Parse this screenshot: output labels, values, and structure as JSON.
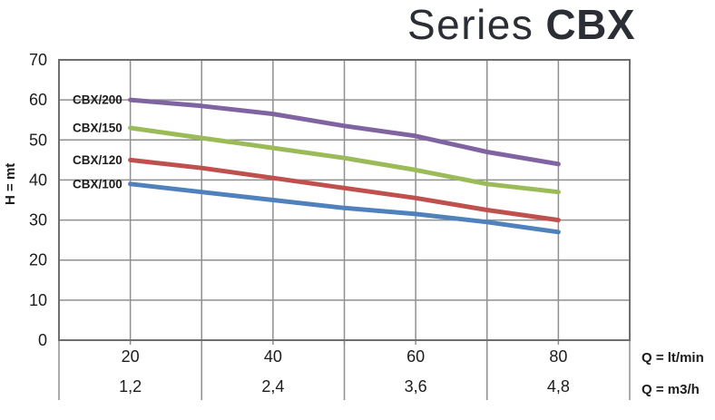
{
  "title": {
    "series": "Series",
    "model": "CBX"
  },
  "colors": {
    "grid": "#8f8f8f",
    "border": "#6e6e6e",
    "text": "#1c1c1c",
    "title": "#2b2e34"
  },
  "chart_data": {
    "type": "line",
    "title": "Series CBX",
    "ylabel": "H = mt",
    "xlabel_primary": "Q = lt/min",
    "xlabel_secondary": "Q = m3/h",
    "xlim": [
      10,
      90
    ],
    "ylim": [
      0,
      70
    ],
    "grid": true,
    "x_gridline_step": 10,
    "y_gridline_step": 10,
    "y_ticks": [
      0,
      10,
      20,
      30,
      40,
      50,
      60,
      70
    ],
    "x_ticks": [
      {
        "x": 20,
        "ltmin": "20",
        "m3h": "1,2"
      },
      {
        "x": 40,
        "ltmin": "40",
        "m3h": "2,4"
      },
      {
        "x": 60,
        "ltmin": "60",
        "m3h": "3,6"
      },
      {
        "x": 80,
        "ltmin": "80",
        "m3h": "4,8"
      }
    ],
    "column_dividers_x": [
      10,
      30,
      50,
      70,
      90
    ],
    "x": [
      20,
      30,
      40,
      50,
      60,
      70,
      80
    ],
    "series": [
      {
        "name": "CBX/200",
        "color": "#8064A2",
        "values": [
          60,
          58.5,
          56.5,
          53.5,
          51,
          47,
          44
        ]
      },
      {
        "name": "CBX/150",
        "color": "#9BBB59",
        "values": [
          53,
          50.5,
          48,
          45.5,
          42.5,
          39,
          37
        ]
      },
      {
        "name": "CBX/120",
        "color": "#C0504D",
        "values": [
          45,
          43,
          40.5,
          38,
          35.5,
          32.5,
          30
        ]
      },
      {
        "name": "CBX/100",
        "color": "#4F81BD",
        "values": [
          39,
          37,
          35,
          33,
          31.5,
          29.5,
          27
        ]
      }
    ]
  }
}
